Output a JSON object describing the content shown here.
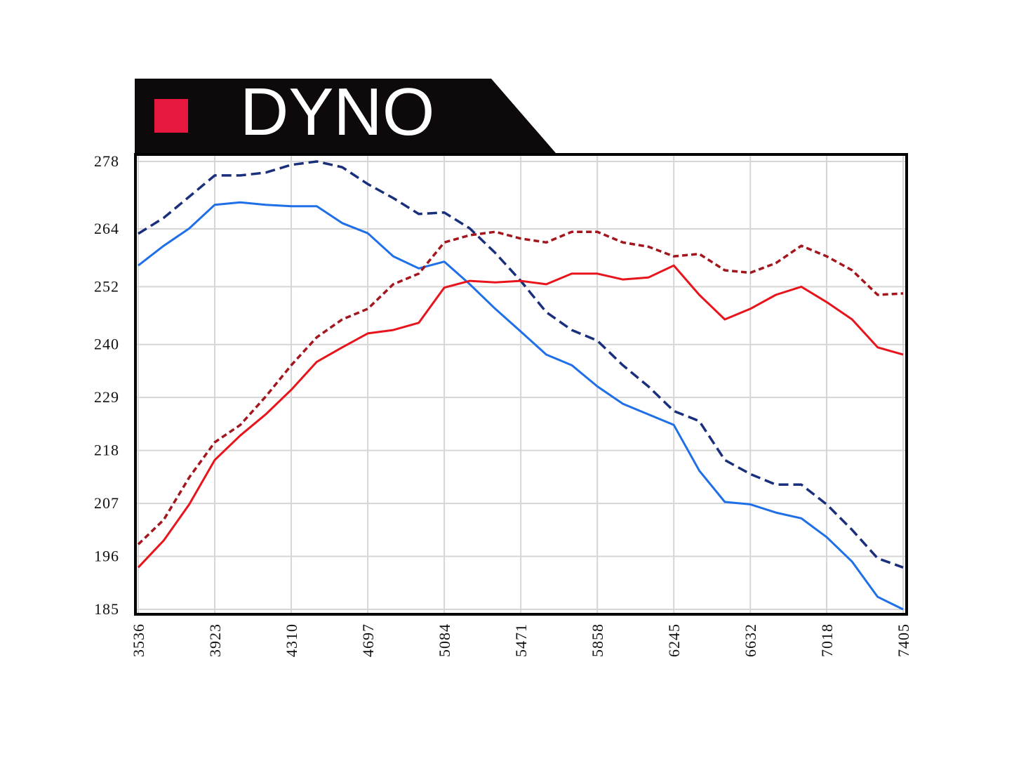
{
  "chart_data": {
    "type": "line",
    "title": "DYNO",
    "title_marker_color": "#e8173f",
    "xlim": [
      3536,
      7405
    ],
    "xticks": [
      3536,
      3923,
      4310,
      4697,
      5084,
      5471,
      5858,
      6245,
      6632,
      7018,
      7405
    ],
    "ylim": [
      185,
      278
    ],
    "yticks": [
      185,
      196,
      207,
      218,
      229,
      240,
      252,
      264,
      278
    ],
    "grid": true,
    "x": [
      3536,
      3665,
      3794,
      3923,
      4052,
      4181,
      4310,
      4439,
      4568,
      4697,
      4826,
      4955,
      5084,
      5213,
      5342,
      5471,
      5600,
      5729,
      5858,
      5987,
      6116,
      6245,
      6374,
      6503,
      6632,
      6761,
      6890,
      7018,
      7147,
      7276,
      7405
    ],
    "series": [
      {
        "color": "#1f6fe8",
        "dashed": false,
        "values": [
          256.4,
          260.5,
          264.1,
          269.0,
          269.5,
          269.0,
          268.7,
          268.7,
          265.2,
          263.1,
          258.3,
          255.8,
          257.2,
          252.5,
          247.4,
          242.7,
          237.9,
          235.7,
          231.3,
          227.7,
          225.5,
          223.3,
          213.8,
          207.3,
          206.8,
          205.1,
          203.9,
          200.0,
          194.9,
          187.6,
          185.0
        ]
      },
      {
        "color": "#1a2f7c",
        "dashed": true,
        "values": [
          263.0,
          266.3,
          270.7,
          275.1,
          275.1,
          275.7,
          277.3,
          278.0,
          276.8,
          273.3,
          270.4,
          267.1,
          267.4,
          264.1,
          259.0,
          253.2,
          246.7,
          243.0,
          240.8,
          235.7,
          231.3,
          226.2,
          224.1,
          216.0,
          213.1,
          210.9,
          210.9,
          206.8,
          201.5,
          195.6,
          193.7
        ]
      },
      {
        "color": "#e8141c",
        "dashed": false,
        "values": [
          193.7,
          199.3,
          206.8,
          216.0,
          221.1,
          225.5,
          230.6,
          236.4,
          239.4,
          242.3,
          243.0,
          244.5,
          251.8,
          253.2,
          252.9,
          253.2,
          252.5,
          254.7,
          254.7,
          253.5,
          253.9,
          256.4,
          250.3,
          245.2,
          247.4,
          250.3,
          252.0,
          248.8,
          245.2,
          239.4,
          237.9
        ]
      },
      {
        "color": "#a3161e",
        "dashed": true,
        "values": [
          198.5,
          203.6,
          212.4,
          219.7,
          223.3,
          229.2,
          235.7,
          241.5,
          245.2,
          247.4,
          252.5,
          254.7,
          261.2,
          262.7,
          263.4,
          262.0,
          261.2,
          263.4,
          263.4,
          261.2,
          260.3,
          258.3,
          258.8,
          255.4,
          254.9,
          256.9,
          260.5,
          258.3,
          255.4,
          250.3,
          250.6
        ]
      }
    ]
  }
}
